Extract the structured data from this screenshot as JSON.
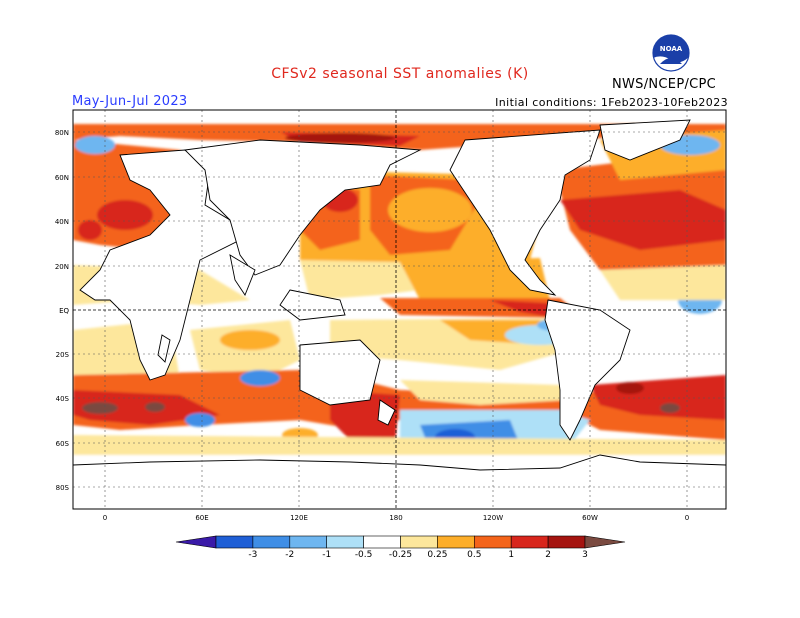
{
  "title": "CFSv2 seasonal SST anomalies (K)",
  "season": "May-Jun-Jul 2023",
  "initial_conditions": "Initial conditions: 1Feb2023-10Feb2023",
  "agency": "NWS/NCEP/CPC",
  "logo": {
    "name": "noaa-logo-icon",
    "text": "NOAA"
  },
  "lat_labels": [
    "80N",
    "60N",
    "40N",
    "20N",
    "EQ",
    "20S",
    "40S",
    "60S",
    "80S"
  ],
  "lon_labels": [
    "0",
    "60E",
    "120E",
    "180",
    "120W",
    "60W",
    "0"
  ],
  "colorbar": {
    "tick_labels": [
      "-3",
      "-2",
      "-1",
      "-0.5",
      "-0.25",
      "0.25",
      "0.5",
      "1",
      "2",
      "3"
    ],
    "colors": [
      "#3a1aa8",
      "#1f5fd6",
      "#3f8ee6",
      "#6eb6f0",
      "#aee0f7",
      "#ffffff",
      "#fde79c",
      "#fdae2a",
      "#f4641a",
      "#d8261c",
      "#a51410",
      "#7a4a40"
    ]
  }
}
